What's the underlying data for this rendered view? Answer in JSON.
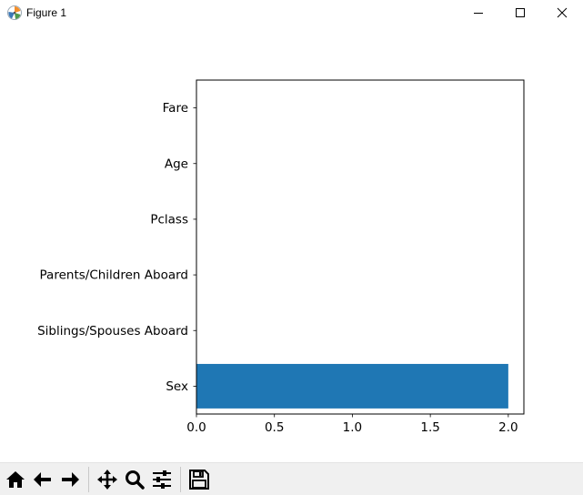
{
  "window": {
    "title": "Figure 1"
  },
  "icons": {
    "app": "matplotlib-icon",
    "minimize": "minimize-icon",
    "maximize": "maximize-icon",
    "close": "close-icon"
  },
  "toolbar": {
    "buttons": [
      {
        "name": "home-button",
        "icon": "home-icon"
      },
      {
        "name": "back-button",
        "icon": "arrow-left-icon"
      },
      {
        "name": "forward-button",
        "icon": "arrow-right-icon"
      },
      {
        "name": "pan-button",
        "icon": "move-icon"
      },
      {
        "name": "zoom-button",
        "icon": "magnifier-icon"
      },
      {
        "name": "configure-subplots-button",
        "icon": "sliders-icon"
      },
      {
        "name": "save-button",
        "icon": "floppy-disk-icon"
      }
    ]
  },
  "chart_data": {
    "type": "bar",
    "orientation": "horizontal",
    "categories": [
      "Sex",
      "Siblings/Spouses Aboard",
      "Parents/Children Aboard",
      "Pclass",
      "Age",
      "Fare"
    ],
    "values": [
      2.0,
      0,
      0,
      0,
      0,
      0
    ],
    "xlim": [
      0,
      2.1
    ],
    "xticks": [
      "0.0",
      "0.5",
      "1.0",
      "1.5",
      "2.0"
    ],
    "xtick_values": [
      0,
      0.5,
      1.0,
      1.5,
      2.0
    ],
    "title": "",
    "xlabel": "",
    "ylabel": "",
    "bar_color": "#1f77b4",
    "grid": false,
    "legend": "none"
  }
}
